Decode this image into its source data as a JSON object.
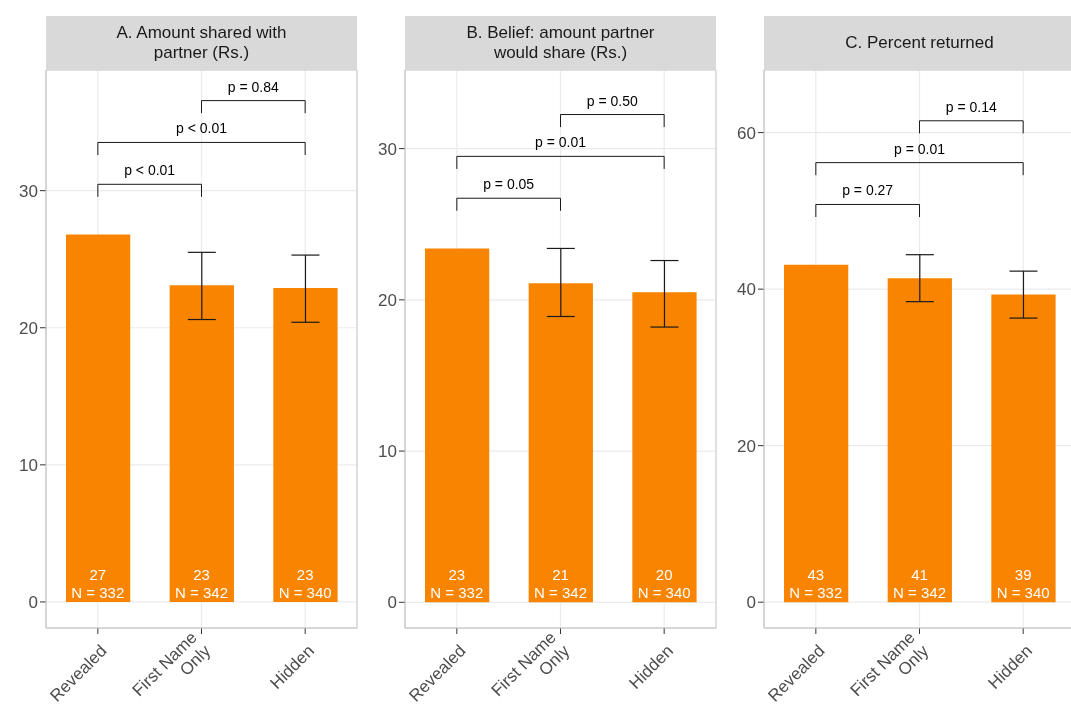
{
  "chart_data": [
    {
      "type": "bar",
      "title": "A. Amount shared with partner (Rs.)",
      "categories": [
        "Revealed",
        "First Name Only",
        "Hidden"
      ],
      "values": [
        26.8,
        23.1,
        22.9
      ],
      "color": "#f88400",
      "errors": [
        null,
        [
          20.6,
          25.5
        ],
        [
          20.4,
          25.3
        ]
      ],
      "value_labels": [
        "27",
        "23",
        "23"
      ],
      "ylim": [
        -1.9,
        38.8
      ],
      "yticks": [
        0,
        10,
        20,
        30
      ],
      "grid": true,
      "annotations": [
        {
          "text": "N = 332",
          "x": "Revealed",
          "y": 0
        },
        {
          "text": "N = 342",
          "x": "First Name Only",
          "y": 0
        },
        {
          "text": "N = 340",
          "x": "Hidden",
          "y": 0
        },
        "p < 0.01",
        "p < 0.01",
        "p = 0.84"
      ]
    },
    {
      "type": "bar",
      "title": "B. Belief: amount partner would share (Rs.)",
      "categories": [
        "Revealed",
        "First Name Only",
        "Hidden"
      ],
      "values": [
        23.4,
        21.1,
        20.5
      ],
      "color": "#f88400",
      "errors": [
        null,
        [
          18.9,
          23.4
        ],
        [
          18.2,
          22.6
        ]
      ],
      "value_labels": [
        "23",
        "21",
        "20"
      ],
      "ylim": [
        -1.7,
        35.2
      ],
      "yticks": [
        0,
        10,
        20,
        30
      ],
      "grid": true,
      "annotations": [
        {
          "text": "N = 332",
          "x": "Revealed",
          "y": 0
        },
        {
          "text": "N = 342",
          "x": "First Name Only",
          "y": 0
        },
        {
          "text": "N = 340",
          "x": "Hidden",
          "y": 0
        },
        "p = 0.05",
        "p = 0.01",
        "p = 0.50"
      ]
    },
    {
      "type": "bar",
      "title": "C. Percent returned",
      "categories": [
        "Revealed",
        "First Name Only",
        "Hidden"
      ],
      "values": [
        43.1,
        41.4,
        39.3
      ],
      "color": "#f88400",
      "errors": [
        null,
        [
          38.4,
          44.4
        ],
        [
          36.3,
          42.3
        ]
      ],
      "value_labels": [
        "43",
        "41",
        "39"
      ],
      "ylim": [
        -3.3,
        68
      ],
      "yticks": [
        0,
        20,
        40,
        60
      ],
      "grid": true,
      "annotations": [
        {
          "text": "N = 332",
          "x": "Revealed",
          "y": 0
        },
        {
          "text": "N = 342",
          "x": "First Name Only",
          "y": 0
        },
        {
          "text": "N = 340",
          "x": "Hidden",
          "y": 0
        },
        "p = 0.27",
        "p = 0.01",
        "p = 0.14"
      ]
    }
  ]
}
